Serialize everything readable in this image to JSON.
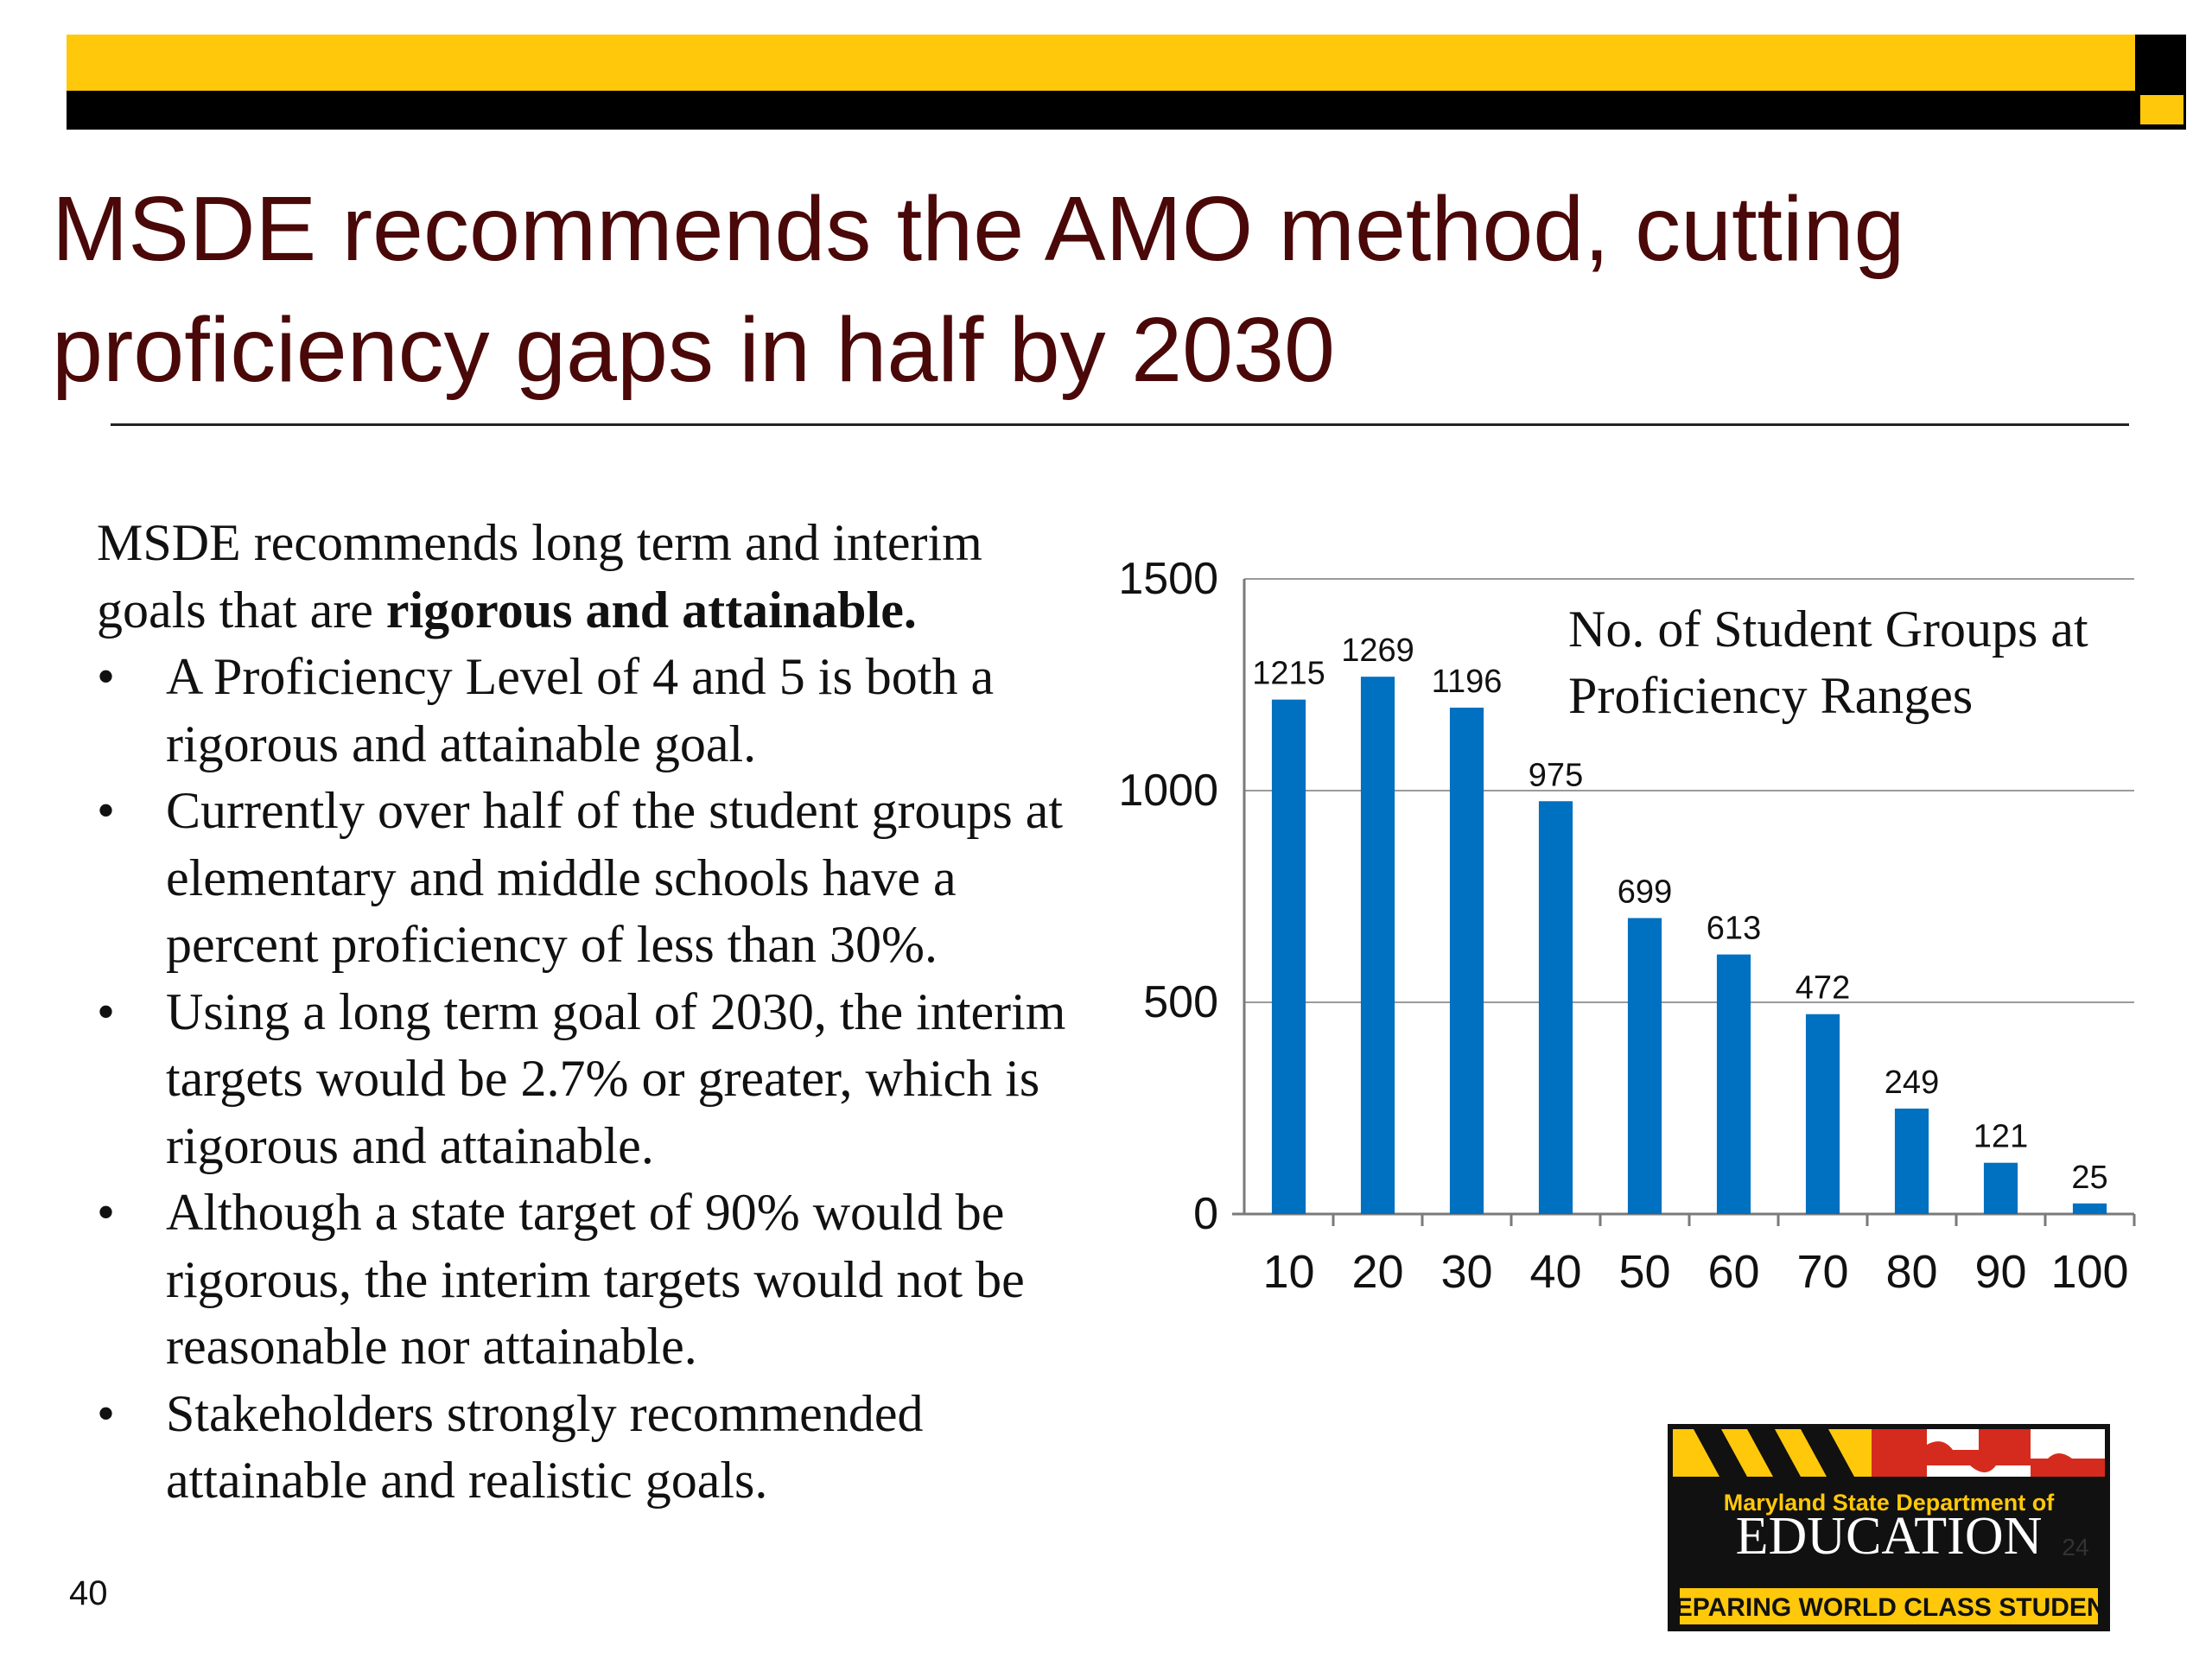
{
  "slide": {
    "title": "MSDE recommends the AMO method, cutting proficiency gaps in half by 2030",
    "page_number": "40",
    "intro_prefix": "MSDE recommends long term and interim goals that are ",
    "intro_bold": "rigorous and attainable.",
    "bullet_symbol": "•",
    "bullets": [
      "A Proficiency Level of 4 and 5 is both a rigorous and attainable goal.",
      "Currently over half of the student groups at elementary and middle schools have a percent proficiency of less than 30%.",
      "Using a long term goal of 2030, the interim targets would be 2.7% or greater, which is rigorous and attainable.",
      "Although a state target of 90% would be rigorous, the interim targets would not be reasonable nor attainable.",
      "Stakeholders strongly recommended attainable and realistic goals."
    ]
  },
  "logo": {
    "line1": "Maryland State Department of",
    "line2": "EDUCATION",
    "line3": "PREPARING WORLD CLASS STUDENTS",
    "overlap_text": "24"
  },
  "colors": {
    "title": "#4a0808",
    "bar": "#0070c0",
    "banner_yellow": "#ffc80a",
    "banner_black": "#000000",
    "logo_red": "#d52b1e",
    "logo_gold": "#ffc80a"
  },
  "chart_data": {
    "type": "bar",
    "title": "No. of Student Groups at  Proficiency Ranges",
    "categories": [
      "10",
      "20",
      "30",
      "40",
      "50",
      "60",
      "70",
      "80",
      "90",
      "100"
    ],
    "values": [
      1215,
      1269,
      1196,
      975,
      699,
      613,
      472,
      249,
      121,
      25
    ],
    "data_labels": [
      "1215",
      "1269",
      "1196",
      "975",
      "699",
      "613",
      "472",
      "249",
      "121",
      "25"
    ],
    "y_ticks": [
      "0",
      "500",
      "1000",
      "1500"
    ],
    "ylim": [
      0,
      1500
    ],
    "grid": true,
    "legend": "none"
  }
}
